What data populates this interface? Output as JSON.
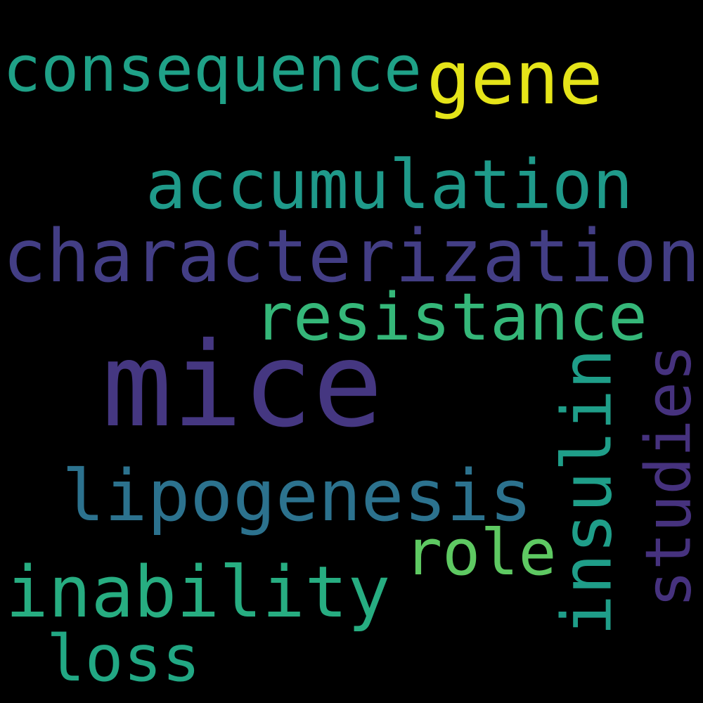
{
  "background": "#000000",
  "words": {
    "mice": {
      "text": "mice",
      "color": "#453781"
    },
    "characterization": {
      "text": "characterization",
      "color": "#433e85"
    },
    "accumulation": {
      "text": "accumulation",
      "color": "#1f9a8a"
    },
    "resistance": {
      "text": "resistance",
      "color": "#35b779"
    },
    "lipogenesis": {
      "text": "lipogenesis",
      "color": "#2c728e"
    },
    "inability": {
      "text": "inability",
      "color": "#27ad81"
    },
    "consequence": {
      "text": "consequence",
      "color": "#1fa187"
    },
    "gene": {
      "text": "gene",
      "color": "#e5e419"
    },
    "role": {
      "text": "role",
      "color": "#5ec962"
    },
    "loss": {
      "text": "loss",
      "color": "#22a884"
    },
    "insulin": {
      "text": "insulin",
      "color": "#1f9e89"
    },
    "studies": {
      "text": "studies",
      "color": "#46327e"
    }
  }
}
